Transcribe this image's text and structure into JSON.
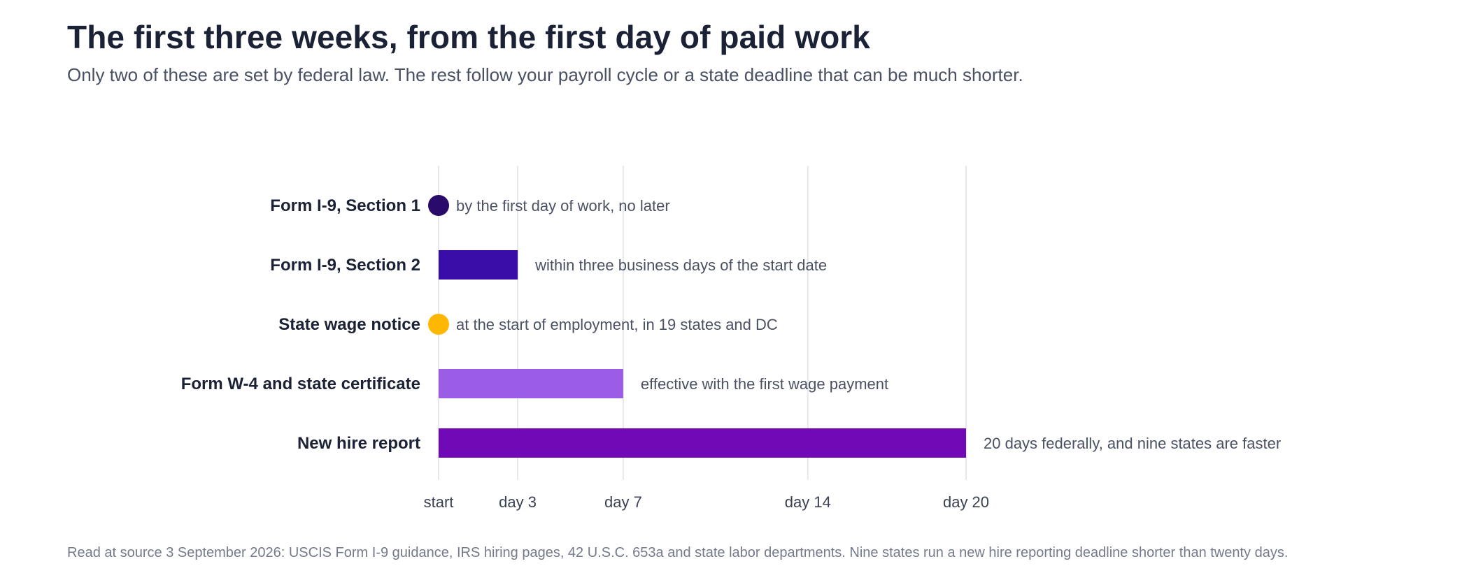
{
  "header": {
    "title": "The first three weeks, from the first day of paid work",
    "subtitle": "Only two of these are set by federal law. The rest follow your payroll cycle or a state deadline that can be much shorter."
  },
  "footer": {
    "note": "Read at source 3 September 2026: USCIS Form I-9 guidance, IRS hiring pages, 42 U.S.C. 653a and state labor departments. Nine states run a new hire reporting deadline shorter than twenty days."
  },
  "chart_data": {
    "type": "bar",
    "orientation": "horizontal",
    "xlim": [
      0,
      20
    ],
    "x_ticks": [
      {
        "value": 0,
        "label": "start"
      },
      {
        "value": 3,
        "label": "day 3"
      },
      {
        "value": 7,
        "label": "day 7"
      },
      {
        "value": 14,
        "label": "day 14"
      },
      {
        "value": 20,
        "label": "day 20"
      }
    ],
    "grid": "vertical",
    "rows": [
      {
        "label": "Form I-9, Section 1",
        "mark": "dot",
        "value": 0,
        "color": "#2a0a6b",
        "annotation": "by the first day of work, no later"
      },
      {
        "label": "Form I-9, Section 2",
        "mark": "bar",
        "value": 3,
        "color": "#3a0ca8",
        "annotation": "within three business days of the start date"
      },
      {
        "label": "State wage notice",
        "mark": "dot",
        "value": 0,
        "color": "#ffb703",
        "annotation": "at the start of employment, in 19 states and DC"
      },
      {
        "label": "Form W-4 and state certificate",
        "mark": "bar",
        "value": 7,
        "color": "#9b5de5",
        "annotation": "effective with the first wage payment"
      },
      {
        "label": "New hire report",
        "mark": "bar",
        "value": 20,
        "color": "#7209b7",
        "annotation": "20 days federally, and nine states are faster"
      }
    ]
  }
}
